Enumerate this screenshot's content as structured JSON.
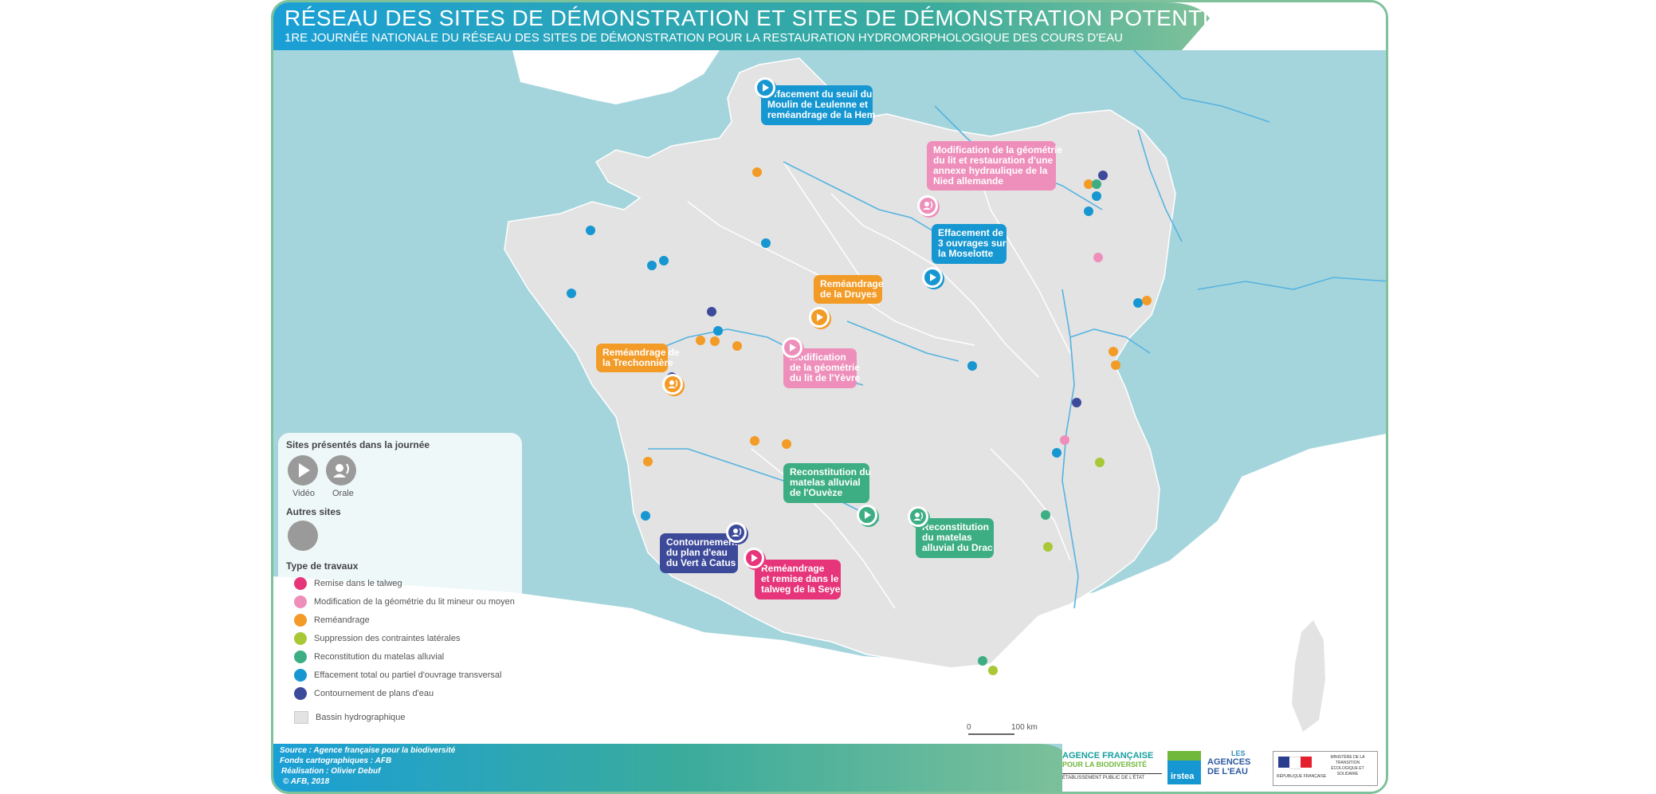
{
  "header": {
    "title": "Réseau des sites de démonstration et sites de démonstration potentiels",
    "subtitle": "1re journée nationale du réseau des sites de démonstration pour la restauration hydromorphologique des cours d'eau"
  },
  "colors": {
    "remise_talweg": "#e6357a",
    "modif_geometrie": "#ee8fbb",
    "remeandrage": "#f39b27",
    "suppression_contraintes": "#a9c836",
    "reconstitution_matelas": "#3dae84",
    "effacement_ouvrage": "#1797d1",
    "contournement": "#3d4a9a",
    "sea": "#a5d5dc",
    "land": "#e3e3e3",
    "neighbour_land": "#ffffff",
    "river": "#55b3e0"
  },
  "callouts": [
    {
      "id": "hem",
      "lines": [
        "Effacement du seuil du",
        "Moulin de Leulenne et",
        "reméandrage de la Hem"
      ],
      "type": "effacement_ouvrage",
      "pin": "video-icon"
    },
    {
      "id": "nied",
      "lines": [
        "Modification de la géométrie",
        "du lit et restauration d'une",
        "annexe hydraulique de la",
        "Nied allemande"
      ],
      "type": "modif_geometrie",
      "pin": "orale-icon"
    },
    {
      "id": "moselotte",
      "lines": [
        "Effacement de",
        "3 ouvrages sur",
        "la Moselotte"
      ],
      "type": "effacement_ouvrage",
      "pin": "video-icon"
    },
    {
      "id": "druyes",
      "lines": [
        "Reméandrage",
        "de la Druyes"
      ],
      "type": "remeandrage",
      "pin": "video-icon"
    },
    {
      "id": "trechonniere",
      "lines": [
        "Reméandrage de",
        "la Trechonnière"
      ],
      "type": "remeandrage",
      "pin": "orale-icon"
    },
    {
      "id": "yevre",
      "lines": [
        "Modification",
        "de la géométrie",
        "du lit de l'Yèvre"
      ],
      "type": "modif_geometrie",
      "pin": "video-icon"
    },
    {
      "id": "ouveze",
      "lines": [
        "Reconstitution du",
        "matelas alluvial",
        "de l'Ouvèze"
      ],
      "type": "reconstitution_matelas",
      "pin": "video-icon"
    },
    {
      "id": "drac",
      "lines": [
        "Reconstitution",
        "du matelas",
        "alluvial du Drac"
      ],
      "type": "reconstitution_matelas",
      "pin": "orale-icon"
    },
    {
      "id": "catus",
      "lines": [
        "Contournement",
        "du plan d'eau",
        "du Vert à Catus"
      ],
      "type": "contournement",
      "pin": "orale-icon"
    },
    {
      "id": "seye",
      "lines": [
        "Reméandrage",
        "et remise dans le",
        "talweg de la Seye"
      ],
      "type": "remise_talweg",
      "pin": "video-icon"
    }
  ],
  "other_sites": [
    {
      "type": "remeandrage"
    },
    {
      "type": "effacement_ouvrage"
    },
    {
      "type": "effacement_ouvrage"
    },
    {
      "type": "effacement_ouvrage"
    },
    {
      "type": "effacement_ouvrage"
    },
    {
      "type": "effacement_ouvrage"
    },
    {
      "type": "contournement"
    },
    {
      "type": "effacement_ouvrage"
    },
    {
      "type": "remeandrage"
    },
    {
      "type": "remeandrage"
    },
    {
      "type": "contournement"
    },
    {
      "type": "remeandrage"
    },
    {
      "type": "contournement"
    },
    {
      "type": "remeandrage"
    },
    {
      "type": "reconstitution_matelas"
    },
    {
      "type": "effacement_ouvrage"
    },
    {
      "type": "effacement_ouvrage"
    },
    {
      "type": "modif_geometrie"
    },
    {
      "type": "effacement_ouvrage"
    },
    {
      "type": "remeandrage"
    },
    {
      "type": "remeandrage"
    },
    {
      "type": "remeandrage"
    },
    {
      "type": "contournement"
    },
    {
      "type": "remeandrage"
    },
    {
      "type": "modif_geometrie"
    },
    {
      "type": "effacement_ouvrage"
    },
    {
      "type": "suppression_contraintes"
    },
    {
      "type": "remeandrage"
    },
    {
      "type": "effacement_ouvrage"
    },
    {
      "type": "reconstitution_matelas"
    },
    {
      "type": "suppression_contraintes"
    },
    {
      "type": "reconstitution_matelas"
    },
    {
      "type": "suppression_contraintes"
    },
    {
      "type": "effacement_ouvrage"
    },
    {
      "type": "remeandrage"
    }
  ],
  "legend": {
    "presented_title": "Sites présentés dans la journée",
    "video_label": "Vidéo",
    "orale_label": "Orale",
    "other_title": "Autres sites",
    "works_title": "Type de travaux",
    "items": [
      {
        "label": "Remise dans le talweg",
        "type": "remise_talweg"
      },
      {
        "label": "Modification de la géométrie du lit mineur ou moyen",
        "type": "modif_geometrie"
      },
      {
        "label": "Reméandrage",
        "type": "remeandrage"
      },
      {
        "label": "Suppression des contraintes latérales",
        "type": "suppression_contraintes"
      },
      {
        "label": "Reconstitution du matelas alluvial",
        "type": "reconstitution_matelas"
      },
      {
        "label": "Effacement total ou partiel d'ouvrage transversal",
        "type": "effacement_ouvrage"
      },
      {
        "label": "Contournement de plans d'eau",
        "type": "contournement"
      }
    ],
    "basin_label": "Bassin hydrographique"
  },
  "scale": {
    "zero": "0",
    "distance": "100 km"
  },
  "credits": {
    "source": "Source : Agence française pour la biodiversité",
    "fonds": "Fonds cartographiques : AFB",
    "realisation": "Réalisation : Olivier Debuf",
    "copyright": "© AFB, 2018"
  },
  "logos": {
    "afb_line1": "AGENCE FRANÇAISE",
    "afb_line2": "POUR LA BIODIVERSITÉ",
    "afb_line3": "ÉTABLISSEMENT PUBLIC DE L'ÉTAT",
    "irstea": "irstea",
    "agences_line1": "LES",
    "agences_line2": "AGENCES",
    "agences_line3": "DE L'EAU",
    "ministere": "MINISTÈRE DE LA TRANSITION ÉCOLOGIQUE ET SOLIDAIRE",
    "republique": "RÉPUBLIQUE FRANÇAISE"
  }
}
